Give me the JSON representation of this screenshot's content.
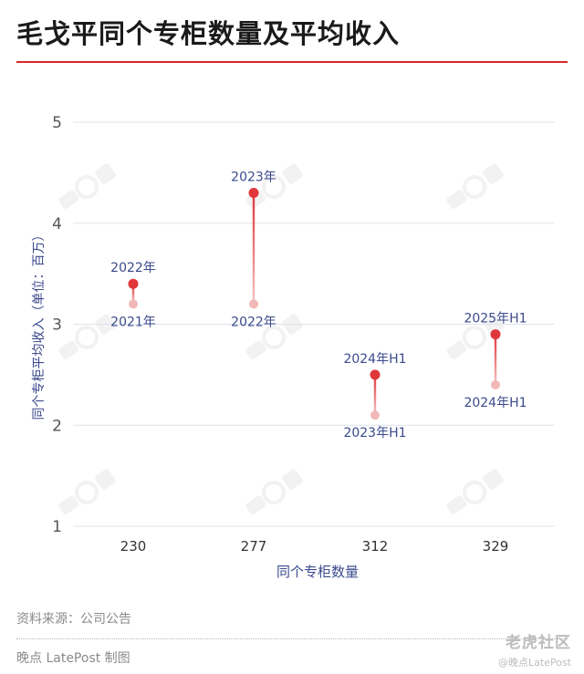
{
  "title": "毛戈平同个专柜数量及平均收入",
  "source": "资料来源：公司公告",
  "credit": "晚点 LatePost 制图",
  "watermark_corner": {
    "main": "老虎社区",
    "sub": "@晚点LatePost"
  },
  "colors": {
    "accent": "#d8282b",
    "point_current": "#e0373a",
    "point_previous": "#f2b8b8",
    "axis_text": "#3b4a8c",
    "grid": "#dfe3ee"
  },
  "chart_data": {
    "type": "dumbbell",
    "xlabel": "同个专柜数量",
    "ylabel": "同个专柜平均收入（单位：百万）",
    "ylim": [
      1,
      5
    ],
    "yticks": [
      1,
      2,
      3,
      4,
      5
    ],
    "grid": true,
    "categories": [
      "230",
      "277",
      "312",
      "329"
    ],
    "series": [
      {
        "role": "previous",
        "values": [
          3.2,
          3.2,
          2.1,
          2.4
        ],
        "labels": [
          "2021年",
          "2022年",
          "2023年H1",
          "2024年H1"
        ]
      },
      {
        "role": "current",
        "values": [
          3.4,
          4.3,
          2.5,
          2.9
        ],
        "labels": [
          "2022年",
          "2023年",
          "2024年H1",
          "2025年H1"
        ]
      }
    ]
  }
}
